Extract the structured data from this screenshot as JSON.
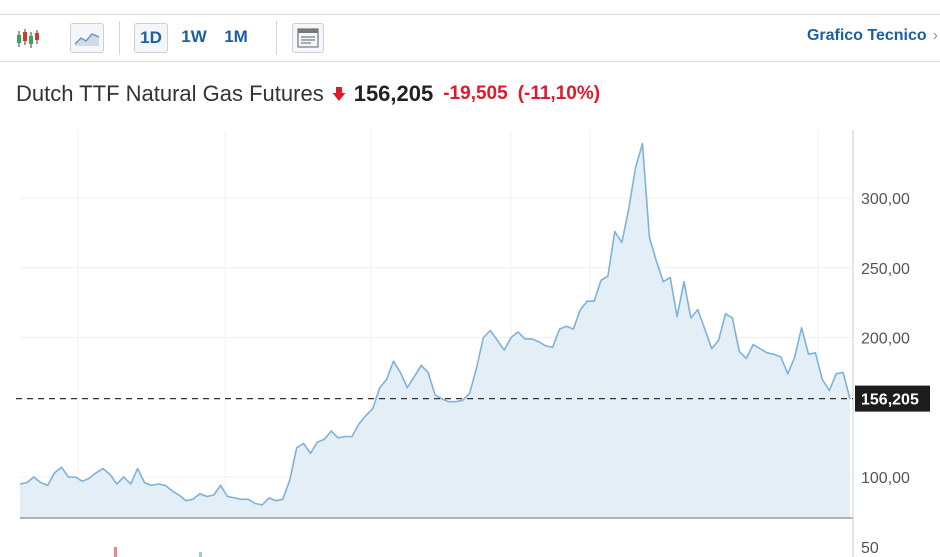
{
  "toolbar": {
    "candlestick_icon": "candlestick-chart-icon",
    "area_icon": "area-chart-icon",
    "ranges": [
      "1D",
      "1W",
      "1M"
    ],
    "news_icon": "news-layout-icon",
    "technical_link": "Grafico Tecnico",
    "technical_chevron": "›"
  },
  "instrument": {
    "name": "Dutch TTF Natural Gas Futures",
    "direction_icon": "down-arrow-icon",
    "price": "156,205",
    "change": "-19,505",
    "change_pct": "(-11,10%)"
  },
  "colors": {
    "line": "#7fb2d8",
    "fill": "#e4eef6",
    "down": "#e0192b",
    "link": "#1d5fa3",
    "current_label_bg": "#1c1c1c"
  },
  "chart_data": {
    "type": "area",
    "y_ticks": [
      "300,00",
      "250,00",
      "200,00",
      "100,00",
      "50"
    ],
    "y_tick_values": [
      300,
      250,
      200,
      100,
      50
    ],
    "ylim": [
      44,
      352
    ],
    "grid": true,
    "current_value": 156.205,
    "current_label": "156,205",
    "series": [
      {
        "values": [
          95,
          96,
          100,
          96,
          94,
          103,
          107,
          100,
          100,
          97,
          99,
          103,
          106,
          102,
          95,
          100,
          95,
          106,
          96,
          94,
          95,
          94,
          90,
          87,
          83,
          84,
          88,
          86,
          87,
          94,
          86,
          85,
          84,
          84,
          81,
          80,
          85,
          83,
          84,
          98,
          121,
          124,
          117,
          125,
          127,
          133,
          128,
          129,
          129,
          138,
          144,
          149,
          164,
          170,
          183,
          175,
          164,
          172,
          180,
          175,
          159,
          156,
          154,
          154,
          155,
          160,
          178,
          200,
          205,
          198,
          191,
          200,
          204,
          199,
          199,
          197,
          194,
          193,
          206,
          208,
          206,
          220,
          226,
          226,
          241,
          244,
          276,
          268,
          292,
          322,
          339,
          272,
          255,
          240,
          243,
          215,
          240,
          214,
          220,
          206,
          192,
          198,
          217,
          214,
          190,
          185,
          195,
          192,
          189,
          188,
          186,
          174,
          186,
          207,
          188,
          189,
          170,
          162,
          174,
          175,
          156
        ]
      }
    ]
  }
}
